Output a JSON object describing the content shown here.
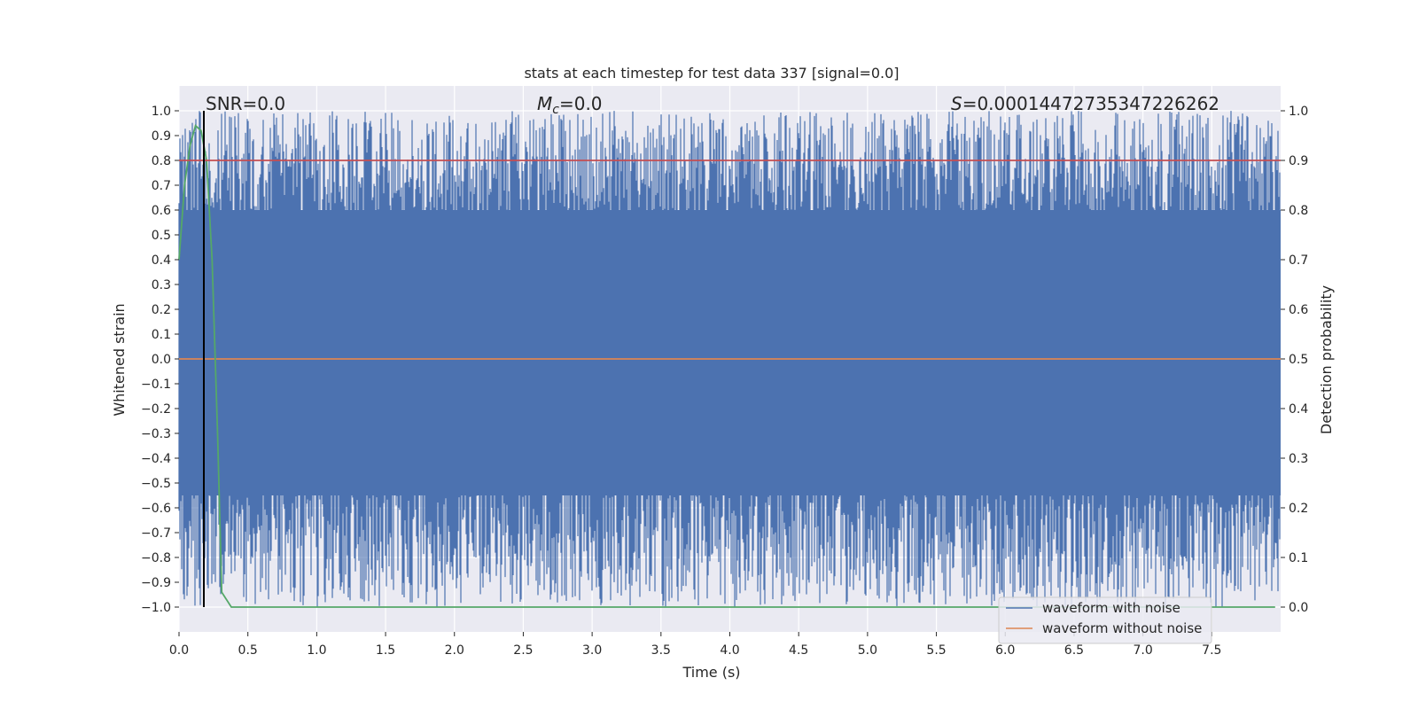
{
  "chart_data": {
    "type": "line",
    "title": "stats at each timestep for test data 337 [signal=0.0]",
    "xlabel": "Time (s)",
    "ylabel": "Whitened strain",
    "ylabel_right": "Detection probability",
    "xlim": [
      0.0,
      8.0
    ],
    "ylim": [
      -1.1,
      1.1
    ],
    "ylim_right": [
      -0.05,
      1.05
    ],
    "x_ticks": [
      "0.0",
      "0.5",
      "1.0",
      "1.5",
      "2.0",
      "2.5",
      "3.0",
      "3.5",
      "4.0",
      "4.5",
      "5.0",
      "5.5",
      "6.0",
      "6.5",
      "7.0",
      "7.5"
    ],
    "y_ticks": [
      "1.0",
      "0.9",
      "0.8",
      "0.7",
      "0.6",
      "0.5",
      "0.4",
      "0.3",
      "0.2",
      "0.1",
      "0.0",
      "−0.1",
      "−0.2",
      "−0.3",
      "−0.4",
      "−0.5",
      "−0.6",
      "−0.7",
      "−0.8",
      "−0.9",
      "−1.0"
    ],
    "y_ticks_right": [
      "1.0",
      "0.9",
      "0.8",
      "0.7",
      "0.6",
      "0.5",
      "0.4",
      "0.3",
      "0.2",
      "0.1",
      "0.0"
    ],
    "grid": true,
    "legend_position": "lower-right",
    "annotations": {
      "snr": "SNR=0.0",
      "mc_symbol": "M",
      "mc_sub": "c",
      "mc_value": "=0.0",
      "s_symbol": "S",
      "s_value": "=0.00014472735347226262"
    },
    "series": [
      {
        "name": "waveform with noise",
        "color": "#4c72b0",
        "axis": "left",
        "description": "dense whitened noise spanning approx -1.0 to 1.0 over full duration"
      },
      {
        "name": "waveform without noise",
        "color": "#dd8452",
        "axis": "left",
        "values": {
          "x": [
            0.0,
            8.0
          ],
          "y": [
            0.0,
            0.0
          ]
        }
      },
      {
        "name": "detection probability",
        "color": "#55a868",
        "axis": "right",
        "legend": false,
        "x": [
          0.0,
          0.04,
          0.08,
          0.12,
          0.16,
          0.2,
          0.24,
          0.28,
          0.31,
          0.38,
          0.5,
          1.0,
          2.0,
          4.0,
          6.0,
          7.96
        ],
        "y": [
          0.7,
          0.85,
          0.93,
          0.97,
          0.96,
          0.9,
          0.7,
          0.35,
          0.03,
          0.0,
          0.0,
          0.0,
          0.0,
          0.0,
          0.0,
          0.0
        ]
      },
      {
        "name": "threshold",
        "color": "#c44e52",
        "axis": "right",
        "legend": false,
        "x": [
          0.0,
          8.0
        ],
        "y": [
          0.9,
          0.9
        ]
      },
      {
        "name": "marker",
        "color": "#000000",
        "axis": "left",
        "legend": false,
        "x": [
          0.18,
          0.18
        ],
        "y": [
          -1.0,
          1.0
        ]
      }
    ],
    "legend": [
      "waveform with noise",
      "waveform without noise"
    ]
  }
}
